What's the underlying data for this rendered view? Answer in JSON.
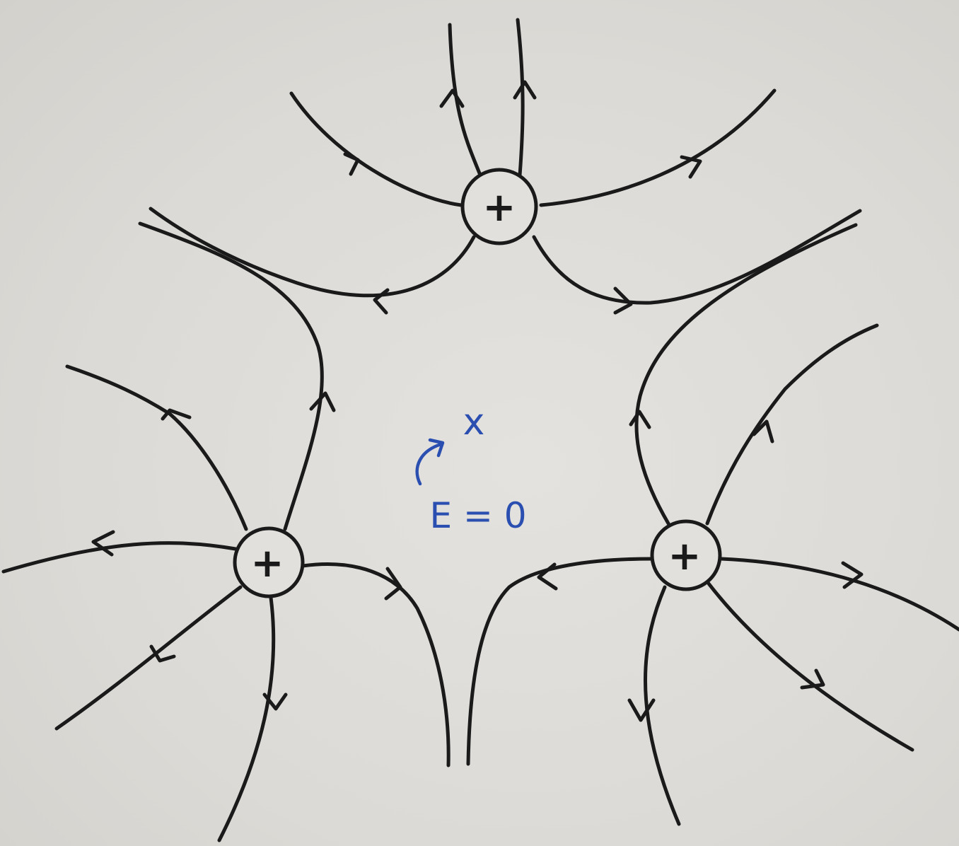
{
  "diagram": {
    "charges": [
      {
        "id": "top",
        "sign": "+"
      },
      {
        "id": "left",
        "sign": "+"
      },
      {
        "id": "right",
        "sign": "+"
      }
    ],
    "center_point": {
      "mark": "x",
      "label": "E = 0"
    },
    "colors": {
      "field_lines": "#1a1a1a",
      "annotation": "#2a4fb0",
      "paper": "#dedcd8"
    }
  }
}
